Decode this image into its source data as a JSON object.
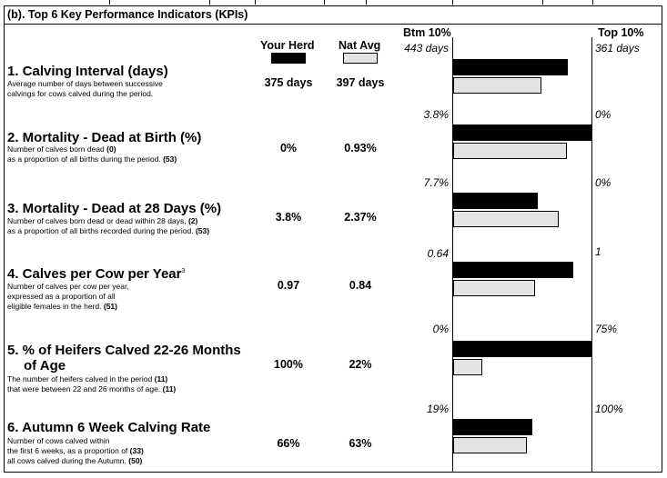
{
  "section_title": "(b). Top 6 Key Performance Indicators (KPIs)",
  "columns": {
    "herd": "Your Herd",
    "nat": "Nat Avg",
    "btm": "Btm 10%",
    "top": "Top 10%"
  },
  "colors": {
    "herd_bar": "#000000",
    "nat_bar": "#e4e4e4"
  },
  "kpis": [
    {
      "title": "1. Calving Interval (days)",
      "title2": "",
      "sup": "",
      "desc": [
        "Average number of days between successive",
        "calvings for cows calved during the period."
      ],
      "herd": "375 days",
      "nat": "397 days",
      "btm": "443 days",
      "top": "361 days",
      "herd_fraction": 0.83,
      "nat_fraction": 0.64
    },
    {
      "title": "2. Mortality - Dead at Birth (%)",
      "title2": "",
      "sup": "",
      "desc": [
        "Number of calves born dead",
        "as a proportion of all births during the period."
      ],
      "desc_counts": [
        "(0)",
        "(53)"
      ],
      "herd": "0%",
      "nat": "0.93%",
      "btm": "3.8%",
      "top": "0%",
      "herd_fraction": 1.0,
      "nat_fraction": 0.82
    },
    {
      "title": "3. Mortality - Dead at 28 Days (%)",
      "title2": "",
      "sup": "",
      "desc": [
        "Number of calves born dead or dead within 28 days,",
        "as a proportion of all births recorded during the period."
      ],
      "desc_counts": [
        "(2)",
        "(53)"
      ],
      "herd": "3.8%",
      "nat": "2.37%",
      "btm": "7.7%",
      "top": "0%",
      "herd_fraction": 0.61,
      "nat_fraction": 0.76
    },
    {
      "title": "4. Calves per Cow per Year",
      "title2": "",
      "sup": "3",
      "desc": [
        "Number of calves per cow per year,",
        "expressed as a proportion of all",
        "eligible females in the herd."
      ],
      "desc_counts": [
        "",
        "",
        "(51)"
      ],
      "herd": "0.97",
      "nat": "0.84",
      "btm": "0.64",
      "top": "1",
      "herd_fraction": 0.87,
      "nat_fraction": 0.59
    },
    {
      "title": "5. % of Heifers Calved 22-26 Months",
      "title2": "of Age",
      "sup": "",
      "desc": [
        "The number of heifers calved in the period",
        "that were between 22 and 26 months of age."
      ],
      "desc_counts": [
        "(11)",
        "(11)"
      ],
      "herd": "100%",
      "nat": "22%",
      "btm": "0%",
      "top": "75%",
      "herd_fraction": 1.0,
      "nat_fraction": 0.21
    },
    {
      "title": "6. Autumn 6 Week Calving Rate",
      "title2": "",
      "sup": "",
      "desc": [
        "Number of cows calved within",
        "the first 6 weeks, as a proportion of",
        "all cows calved during the Autumn."
      ],
      "desc_counts": [
        "",
        "(33)",
        "(50)"
      ],
      "herd": "66%",
      "nat": "63%",
      "btm": "19%",
      "top": "100%",
      "herd_fraction": 0.57,
      "nat_fraction": 0.53
    }
  ]
}
